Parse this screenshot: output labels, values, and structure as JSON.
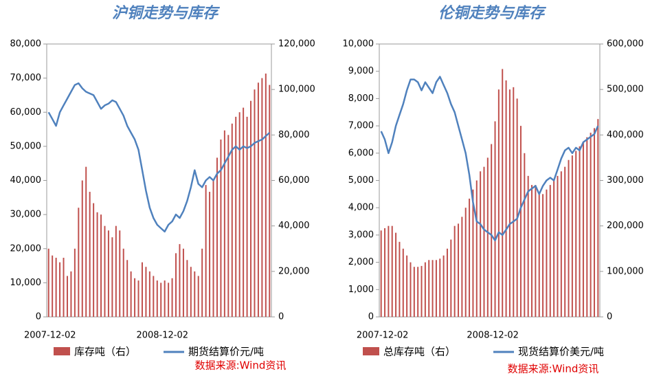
{
  "chart_data": [
    {
      "type": "combo",
      "title": "沪铜走势与库存",
      "source": "数据来源:Wind资讯",
      "categories": [
        "2007-12-02",
        null,
        null,
        null,
        null,
        null,
        null,
        null,
        null,
        null,
        null,
        null,
        null,
        null,
        null,
        null,
        null,
        null,
        null,
        null,
        null,
        null,
        null,
        null,
        null,
        null,
        null,
        null,
        null,
        null,
        "2008-12-02",
        null,
        null,
        null,
        null,
        null,
        null,
        null,
        null,
        null,
        null,
        null,
        null,
        null,
        null,
        null,
        null,
        null,
        null,
        null,
        null,
        null,
        null,
        null,
        null,
        null,
        null,
        null,
        null,
        null
      ],
      "ylim": [
        0,
        80000
      ],
      "yticks": [
        0,
        {
          "value": 10000,
          "label": "10,000"
        },
        {
          "value": 20000,
          "label": "20,000"
        },
        {
          "value": 30000,
          "label": "30,000"
        },
        {
          "value": 40000,
          "label": "40,000"
        },
        {
          "value": 50000,
          "label": "50,000"
        },
        {
          "value": 60000,
          "label": "60,000"
        },
        {
          "value": 70000,
          "label": "70,000"
        },
        {
          "value": 80000,
          "label": "80,000"
        }
      ],
      "y2lim": [
        0,
        120000
      ],
      "y2ticks": [
        0,
        {
          "value": 20000,
          "label": "20,000"
        },
        {
          "value": 40000,
          "label": "40,000"
        },
        {
          "value": 60000,
          "label": "60,000"
        },
        {
          "value": 80000,
          "label": "80,000"
        },
        {
          "value": 100000,
          "label": "100,000"
        },
        {
          "value": 120000,
          "label": "120,000"
        }
      ],
      "series": [
        {
          "name": "库存吨（右）",
          "type": "bar",
          "axis": "y2",
          "color": "#c0504d",
          "values": [
            30000,
            27000,
            26000,
            24000,
            26000,
            18000,
            20000,
            30000,
            48000,
            60000,
            66000,
            55000,
            50000,
            46000,
            45000,
            40000,
            38000,
            35000,
            40000,
            38000,
            30000,
            25000,
            20000,
            17000,
            16000,
            24000,
            22000,
            20000,
            18000,
            16000,
            15000,
            16000,
            15000,
            17000,
            28000,
            32000,
            30000,
            25000,
            22000,
            20000,
            18000,
            30000,
            58000,
            55000,
            60000,
            70000,
            78000,
            82000,
            80000,
            85000,
            88000,
            90000,
            92000,
            88000,
            95000,
            100000,
            103000,
            105000,
            107000,
            102000
          ]
        },
        {
          "name": "期货结算价元/吨",
          "type": "line",
          "color": "#4f81bd",
          "values": [
            60000,
            58000,
            56000,
            60000,
            62000,
            64000,
            66000,
            68000,
            68500,
            67000,
            66000,
            65500,
            65000,
            63000,
            61000,
            62000,
            62500,
            63500,
            63000,
            61000,
            59000,
            56000,
            54000,
            52000,
            49000,
            43000,
            37000,
            32000,
            29000,
            27000,
            26000,
            25000,
            27000,
            28000,
            30000,
            29000,
            31000,
            34000,
            38000,
            43000,
            39000,
            38000,
            40000,
            41000,
            40000,
            42000,
            43000,
            45000,
            47000,
            49000,
            50000,
            49000,
            50000,
            49500,
            50000,
            51000,
            51500,
            52000,
            53000,
            54000
          ]
        }
      ]
    },
    {
      "type": "combo",
      "title": "伦铜走势与库存",
      "source": "数据来源:Wind资讯",
      "categories": [
        "2007-12-02",
        null,
        null,
        null,
        null,
        null,
        null,
        null,
        null,
        null,
        null,
        null,
        null,
        null,
        null,
        null,
        null,
        null,
        null,
        null,
        null,
        null,
        null,
        null,
        null,
        null,
        null,
        null,
        null,
        null,
        "2008-12-02",
        null,
        null,
        null,
        null,
        null,
        null,
        null,
        null,
        null,
        null,
        null,
        null,
        null,
        null,
        null,
        null,
        null,
        null,
        null,
        null,
        null,
        null,
        null,
        null,
        null,
        null,
        null,
        null,
        null
      ],
      "ylim": [
        0,
        10000
      ],
      "yticks": [
        0,
        {
          "value": 1000,
          "label": "1,000"
        },
        {
          "value": 2000,
          "label": "2,000"
        },
        {
          "value": 3000,
          "label": "3,000"
        },
        {
          "value": 4000,
          "label": "4,000"
        },
        {
          "value": 5000,
          "label": "5,000"
        },
        {
          "value": 6000,
          "label": "6,000"
        },
        {
          "value": 7000,
          "label": "7,000"
        },
        {
          "value": 8000,
          "label": "8,000"
        },
        {
          "value": 9000,
          "label": "9,000"
        },
        {
          "value": 10000,
          "label": "10,000"
        }
      ],
      "y2lim": [
        0,
        600000
      ],
      "y2ticks": [
        0,
        {
          "value": 100000,
          "label": "100,000"
        },
        {
          "value": 200000,
          "label": "200,000"
        },
        {
          "value": 300000,
          "label": "300,000"
        },
        {
          "value": 400000,
          "label": "400,000"
        },
        {
          "value": 500000,
          "label": "500,000"
        },
        {
          "value": 600000,
          "label": "600,000"
        }
      ],
      "series": [
        {
          "name": "总库存吨（右）",
          "type": "bar",
          "axis": "y2",
          "color": "#c0504d",
          "values": [
            190000,
            195000,
            200000,
            200000,
            185000,
            165000,
            150000,
            135000,
            120000,
            110000,
            110000,
            112000,
            120000,
            125000,
            125000,
            125000,
            128000,
            135000,
            150000,
            170000,
            200000,
            205000,
            220000,
            240000,
            260000,
            280000,
            300000,
            320000,
            330000,
            350000,
            380000,
            430000,
            500000,
            545000,
            520000,
            500000,
            505000,
            480000,
            420000,
            360000,
            310000,
            290000,
            290000,
            270000,
            270000,
            280000,
            290000,
            300000,
            310000,
            320000,
            330000,
            345000,
            355000,
            365000,
            375000,
            385000,
            395000,
            405000,
            415000,
            435000
          ]
        },
        {
          "name": "现货结算价美元/吨",
          "type": "line",
          "color": "#4f81bd",
          "values": [
            6800,
            6500,
            6000,
            6400,
            7000,
            7400,
            7800,
            8300,
            8700,
            8700,
            8600,
            8300,
            8600,
            8400,
            8200,
            8600,
            8800,
            8500,
            8200,
            7800,
            7500,
            7000,
            6500,
            6000,
            5200,
            4200,
            3500,
            3400,
            3200,
            3100,
            3000,
            2800,
            3100,
            3000,
            3200,
            3400,
            3500,
            3600,
            4000,
            4300,
            4600,
            4700,
            4800,
            4500,
            4800,
            5000,
            5100,
            5000,
            5400,
            5800,
            6100,
            6200,
            6000,
            6200,
            6100,
            6400,
            6500,
            6600,
            6700,
            7000
          ]
        }
      ]
    }
  ]
}
